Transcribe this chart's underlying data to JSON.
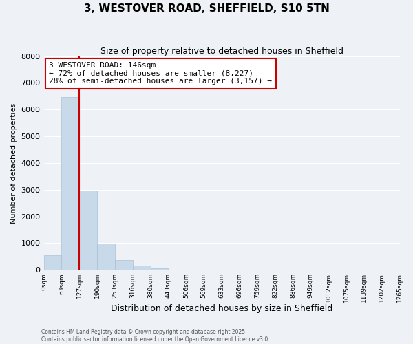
{
  "title": "3, WESTOVER ROAD, SHEFFIELD, S10 5TN",
  "subtitle": "Size of property relative to detached houses in Sheffield",
  "xlabel": "Distribution of detached houses by size in Sheffield",
  "ylabel": "Number of detached properties",
  "bar_color": "#c8daea",
  "bar_edge_color": "#aac0d8",
  "background_color": "#eef2f7",
  "grid_color": "#ffffff",
  "annotation_box_color": "#ffffff",
  "annotation_box_edge": "#cc0000",
  "vline_color": "#cc0000",
  "ylim": [
    0,
    8000
  ],
  "yticks": [
    0,
    1000,
    2000,
    3000,
    4000,
    5000,
    6000,
    7000,
    8000
  ],
  "bin_labels": [
    "0sqm",
    "63sqm",
    "127sqm",
    "190sqm",
    "253sqm",
    "316sqm",
    "380sqm",
    "443sqm",
    "506sqm",
    "569sqm",
    "633sqm",
    "696sqm",
    "759sqm",
    "822sqm",
    "886sqm",
    "949sqm",
    "1012sqm",
    "1075sqm",
    "1139sqm",
    "1202sqm",
    "1265sqm"
  ],
  "bar_heights": [
    550,
    6480,
    2980,
    990,
    370,
    155,
    60,
    0,
    0,
    0,
    0,
    0,
    0,
    0,
    0,
    0,
    0,
    0,
    0,
    0
  ],
  "annotation_title": "3 WESTOVER ROAD: 146sqm",
  "annotation_line1": "← 72% of detached houses are smaller (8,227)",
  "annotation_line2": "28% of semi-detached houses are larger (3,157) →",
  "footer_line1": "Contains HM Land Registry data © Crown copyright and database right 2025.",
  "footer_line2": "Contains public sector information licensed under the Open Government Licence v3.0.",
  "vline_x_idx": 2,
  "n_bins": 20
}
